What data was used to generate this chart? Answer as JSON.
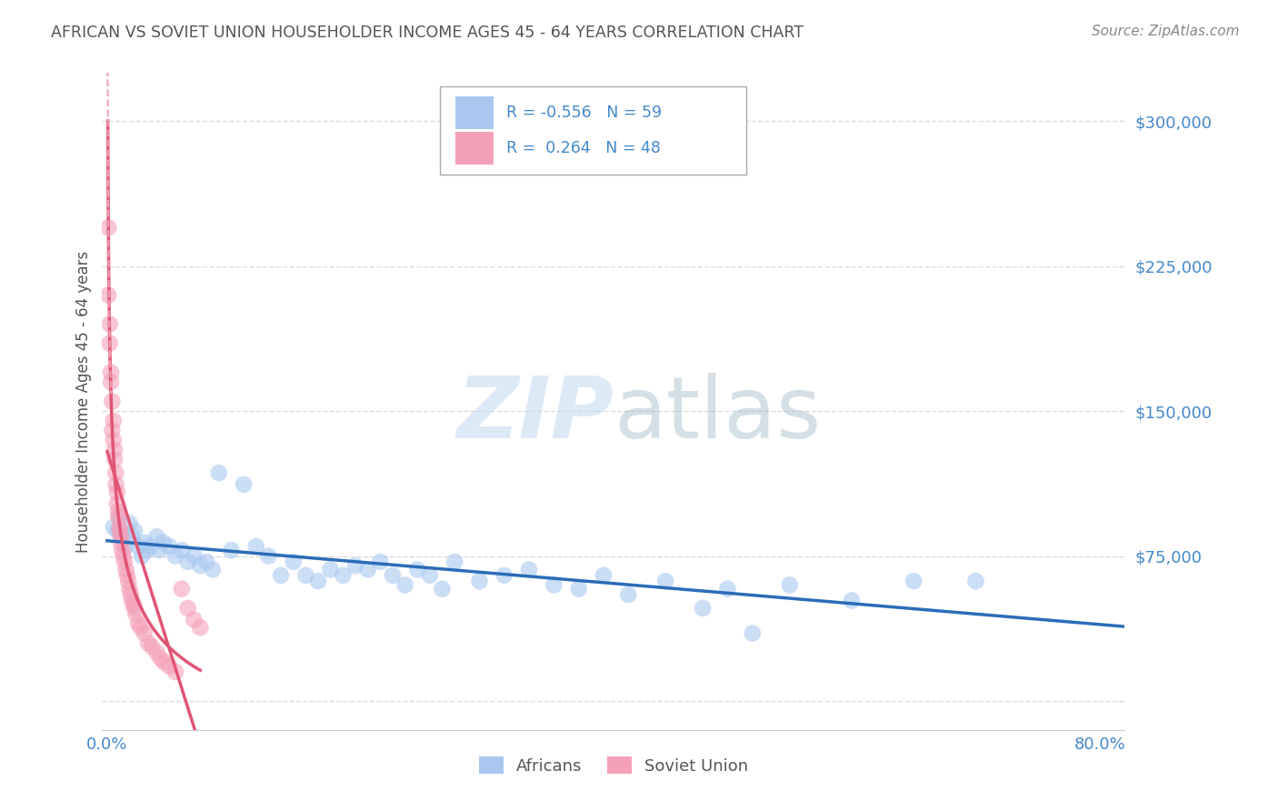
{
  "title": "AFRICAN VS SOVIET UNION HOUSEHOLDER INCOME AGES 45 - 64 YEARS CORRELATION CHART",
  "source": "Source: ZipAtlas.com",
  "ylabel": "Householder Income Ages 45 - 64 years",
  "xlim": [
    -0.004,
    0.82
  ],
  "ylim": [
    -15000,
    325000
  ],
  "yticks": [
    0,
    75000,
    150000,
    225000,
    300000
  ],
  "ytick_labels": [
    "",
    "$75,000",
    "$150,000",
    "$225,000",
    "$300,000"
  ],
  "xticks": [
    0.0,
    0.1,
    0.2,
    0.3,
    0.4,
    0.5,
    0.6,
    0.7,
    0.8
  ],
  "xtick_labels": [
    "0.0%",
    "",
    "",
    "",
    "",
    "",
    "",
    "",
    "80.0%"
  ],
  "blue_color": "#a8c8f0",
  "pink_color": "#f4a0b8",
  "blue_line_color": "#2b6cb8",
  "pink_line_color": "#e05575",
  "pink_dash_color": "#f0a0b8",
  "legend_blue_label": "Africans",
  "legend_pink_label": "Soviet Union",
  "r_blue": "-0.556",
  "n_blue": "59",
  "r_pink": "0.264",
  "n_pink": "48",
  "background_color": "#ffffff",
  "grid_color": "#cccccc",
  "title_color": "#555555",
  "source_color": "#888888",
  "axis_label_color": "#555555",
  "tick_color": "#4488cc",
  "watermark_color": "#c0d8f0",
  "africans_x": [
    0.005,
    0.008,
    0.01,
    0.012,
    0.015,
    0.018,
    0.02,
    0.022,
    0.025,
    0.028,
    0.03,
    0.032,
    0.035,
    0.04,
    0.042,
    0.045,
    0.05,
    0.055,
    0.06,
    0.065,
    0.07,
    0.075,
    0.08,
    0.085,
    0.09,
    0.1,
    0.11,
    0.12,
    0.13,
    0.14,
    0.15,
    0.16,
    0.17,
    0.18,
    0.19,
    0.2,
    0.21,
    0.22,
    0.23,
    0.24,
    0.25,
    0.26,
    0.27,
    0.28,
    0.3,
    0.32,
    0.34,
    0.36,
    0.38,
    0.4,
    0.42,
    0.45,
    0.48,
    0.5,
    0.52,
    0.55,
    0.6,
    0.65,
    0.7
  ],
  "africans_y": [
    90000,
    88000,
    95000,
    85000,
    80000,
    92000,
    85000,
    88000,
    80000,
    75000,
    82000,
    78000,
    80000,
    85000,
    78000,
    82000,
    80000,
    75000,
    78000,
    72000,
    75000,
    70000,
    72000,
    68000,
    118000,
    78000,
    112000,
    80000,
    75000,
    65000,
    72000,
    65000,
    62000,
    68000,
    65000,
    70000,
    68000,
    72000,
    65000,
    60000,
    68000,
    65000,
    58000,
    72000,
    62000,
    65000,
    68000,
    60000,
    58000,
    65000,
    55000,
    62000,
    48000,
    58000,
    35000,
    60000,
    52000,
    62000,
    62000
  ],
  "soviet_x": [
    0.001,
    0.001,
    0.002,
    0.002,
    0.003,
    0.003,
    0.004,
    0.004,
    0.005,
    0.005,
    0.006,
    0.006,
    0.007,
    0.007,
    0.008,
    0.008,
    0.009,
    0.009,
    0.01,
    0.01,
    0.011,
    0.011,
    0.012,
    0.013,
    0.014,
    0.015,
    0.016,
    0.017,
    0.018,
    0.019,
    0.02,
    0.021,
    0.022,
    0.023,
    0.025,
    0.027,
    0.03,
    0.033,
    0.036,
    0.04,
    0.043,
    0.046,
    0.05,
    0.055,
    0.06,
    0.065,
    0.07,
    0.075
  ],
  "soviet_y": [
    245000,
    210000,
    185000,
    195000,
    165000,
    170000,
    140000,
    155000,
    135000,
    145000,
    125000,
    130000,
    118000,
    112000,
    108000,
    102000,
    98000,
    95000,
    90000,
    88000,
    85000,
    82000,
    78000,
    75000,
    72000,
    68000,
    65000,
    62000,
    58000,
    55000,
    52000,
    50000,
    48000,
    45000,
    40000,
    38000,
    35000,
    30000,
    28000,
    25000,
    22000,
    20000,
    18000,
    15000,
    58000,
    48000,
    42000,
    38000
  ]
}
